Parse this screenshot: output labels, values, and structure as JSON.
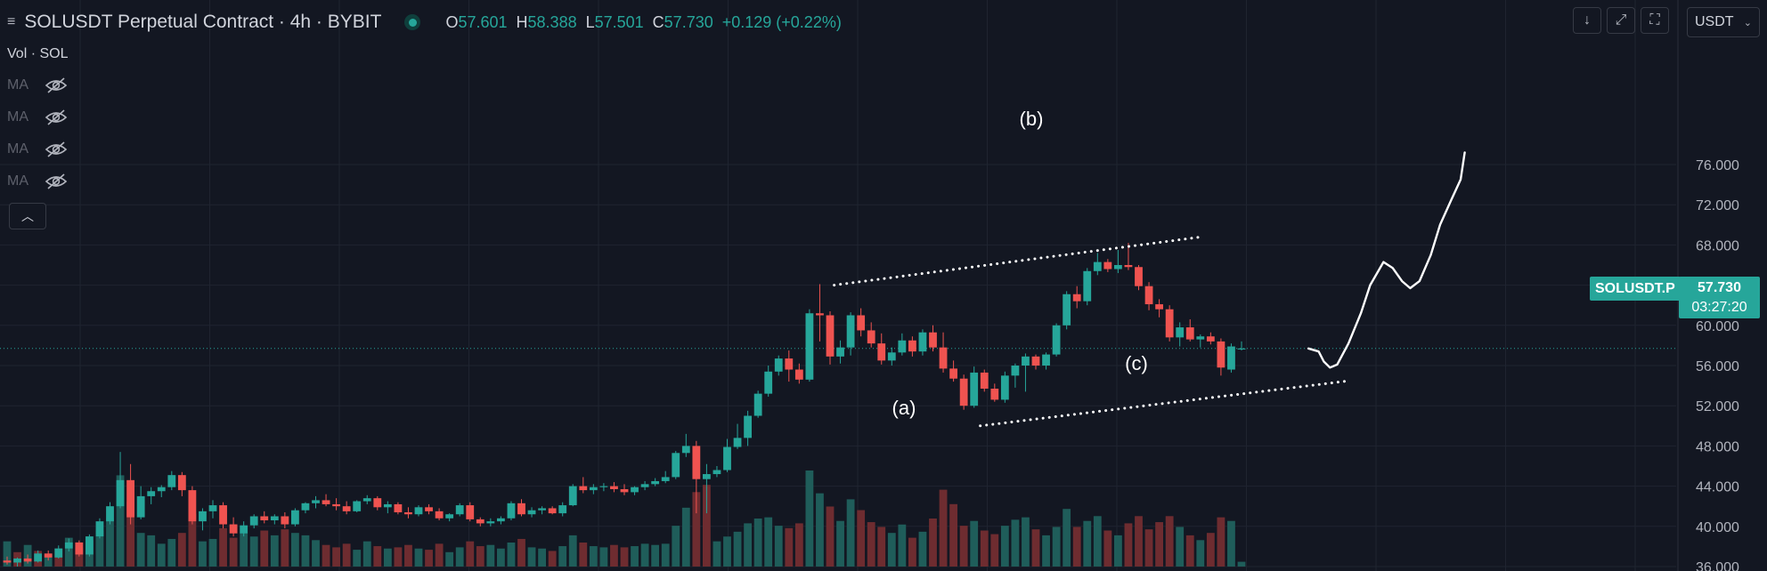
{
  "header": {
    "symbol_title": "SOLUSDT Perpetual Contract · 4h · BYBIT",
    "ohlc": {
      "o_label": "O",
      "o_value": "57.601",
      "h_label": "H",
      "h_value": "58.388",
      "l_label": "L",
      "l_value": "57.501",
      "c_label": "C",
      "c_value": "57.730",
      "change": "+0.129 (+0.22%)"
    }
  },
  "indicators": {
    "volume_label": "Vol · SOL",
    "ma_labels": [
      "MA",
      "MA",
      "MA",
      "MA"
    ]
  },
  "toolbar": {
    "currency": "USDT"
  },
  "price_axis": {
    "ticks": [
      "76.000",
      "72.000",
      "68.000",
      "64.000",
      "60.000",
      "56.000",
      "52.000",
      "48.000",
      "44.000",
      "40.000",
      "36.000"
    ]
  },
  "last_price": {
    "ticker": "SOLUSDT.P",
    "price": "57.730",
    "countdown": "03:27:20"
  },
  "annotations": {
    "a": "(a)",
    "b": "(b)",
    "c": "(c)"
  },
  "colors": {
    "background": "#131722",
    "up": "#26a69a",
    "down": "#ef5350",
    "vol_up": "#1f5d5a",
    "vol_down": "#6e2c30",
    "grid": "#1f2430"
  },
  "chart_data": {
    "type": "candlestick",
    "ylim": [
      36,
      77.5
    ],
    "candles": [
      [
        36.6,
        37.0,
        36.2,
        36.4
      ],
      [
        36.4,
        36.9,
        36.0,
        36.8
      ],
      [
        36.8,
        37.2,
        36.3,
        36.5
      ],
      [
        36.5,
        37.6,
        36.4,
        37.3
      ],
      [
        37.3,
        37.6,
        36.6,
        36.9
      ],
      [
        36.9,
        38.1,
        36.8,
        37.8
      ],
      [
        37.8,
        38.8,
        37.5,
        38.4
      ],
      [
        38.4,
        38.6,
        37.0,
        37.2
      ],
      [
        37.2,
        39.2,
        37.0,
        39.0
      ],
      [
        39.0,
        40.8,
        38.8,
        40.5
      ],
      [
        40.5,
        42.4,
        40.2,
        42.0
      ],
      [
        42.0,
        47.4,
        41.8,
        44.6
      ],
      [
        44.6,
        46.2,
        40.2,
        40.9
      ],
      [
        40.9,
        44.0,
        40.7,
        43.0
      ],
      [
        43.0,
        43.9,
        42.2,
        43.5
      ],
      [
        43.5,
        44.1,
        42.9,
        43.9
      ],
      [
        43.9,
        45.5,
        43.6,
        45.1
      ],
      [
        45.1,
        45.4,
        43.0,
        43.6
      ],
      [
        43.6,
        44.0,
        40.2,
        40.5
      ],
      [
        40.5,
        41.8,
        39.6,
        41.5
      ],
      [
        41.5,
        42.6,
        40.8,
        42.1
      ],
      [
        42.1,
        42.4,
        39.8,
        40.2
      ],
      [
        40.2,
        40.9,
        39.0,
        39.3
      ],
      [
        39.3,
        40.5,
        39.0,
        40.1
      ],
      [
        40.1,
        41.2,
        39.8,
        41.0
      ],
      [
        41.0,
        41.5,
        40.3,
        40.6
      ],
      [
        40.6,
        41.2,
        40.2,
        41.0
      ],
      [
        41.0,
        41.4,
        39.8,
        40.2
      ],
      [
        40.2,
        41.8,
        40.0,
        41.6
      ],
      [
        41.6,
        42.4,
        41.3,
        42.3
      ],
      [
        42.3,
        43.0,
        41.8,
        42.6
      ],
      [
        42.6,
        43.2,
        42.0,
        42.2
      ],
      [
        42.2,
        42.8,
        41.6,
        42.0
      ],
      [
        42.0,
        42.5,
        41.2,
        41.5
      ],
      [
        41.5,
        42.6,
        41.4,
        42.5
      ],
      [
        42.5,
        43.1,
        42.2,
        42.8
      ],
      [
        42.8,
        43.0,
        41.6,
        41.9
      ],
      [
        41.9,
        42.5,
        41.3,
        42.2
      ],
      [
        42.2,
        42.4,
        41.2,
        41.4
      ],
      [
        41.4,
        41.9,
        40.8,
        41.2
      ],
      [
        41.2,
        42.1,
        41.0,
        41.9
      ],
      [
        41.9,
        42.2,
        41.2,
        41.5
      ],
      [
        41.5,
        41.8,
        40.6,
        40.8
      ],
      [
        40.8,
        41.3,
        40.5,
        41.2
      ],
      [
        41.2,
        42.3,
        41.0,
        42.1
      ],
      [
        42.1,
        42.4,
        40.5,
        40.7
      ],
      [
        40.7,
        40.9,
        40.0,
        40.3
      ],
      [
        40.3,
        40.8,
        40.0,
        40.5
      ],
      [
        40.5,
        41.0,
        40.2,
        40.8
      ],
      [
        40.8,
        42.5,
        40.6,
        42.3
      ],
      [
        42.3,
        42.7,
        41.0,
        41.2
      ],
      [
        41.2,
        41.9,
        40.9,
        41.6
      ],
      [
        41.6,
        42.0,
        41.2,
        41.8
      ],
      [
        41.8,
        42.0,
        41.2,
        41.3
      ],
      [
        41.3,
        42.4,
        41.0,
        42.1
      ],
      [
        42.1,
        44.2,
        42.0,
        44.0
      ],
      [
        44.0,
        44.9,
        43.3,
        43.6
      ],
      [
        43.6,
        44.2,
        43.2,
        43.9
      ],
      [
        43.9,
        44.3,
        43.5,
        44.0
      ],
      [
        44.0,
        44.4,
        43.4,
        43.7
      ],
      [
        43.7,
        44.2,
        43.1,
        43.4
      ],
      [
        43.4,
        44.0,
        43.1,
        43.9
      ],
      [
        43.9,
        44.5,
        43.6,
        44.2
      ],
      [
        44.2,
        44.8,
        44.0,
        44.5
      ],
      [
        44.5,
        45.5,
        44.3,
        44.9
      ],
      [
        44.9,
        47.5,
        44.7,
        47.3
      ],
      [
        47.3,
        49.2,
        46.9,
        48.0
      ],
      [
        48.0,
        48.5,
        41.3,
        44.7
      ],
      [
        44.7,
        46.2,
        41.3,
        45.2
      ],
      [
        45.2,
        46.0,
        44.9,
        45.6
      ],
      [
        45.6,
        48.7,
        45.4,
        47.9
      ],
      [
        47.9,
        50.2,
        47.7,
        48.8
      ],
      [
        48.8,
        51.5,
        48.0,
        51.0
      ],
      [
        51.0,
        53.5,
        50.8,
        53.2
      ],
      [
        53.2,
        56.0,
        52.9,
        55.4
      ],
      [
        55.4,
        57.0,
        55.0,
        56.7
      ],
      [
        56.7,
        57.5,
        54.4,
        55.6
      ],
      [
        55.6,
        56.2,
        54.2,
        54.6
      ],
      [
        54.6,
        61.6,
        54.4,
        61.2
      ],
      [
        61.2,
        64.1,
        58.4,
        61.0
      ],
      [
        61.0,
        61.4,
        56.1,
        56.9
      ],
      [
        56.9,
        58.5,
        56.2,
        57.8
      ],
      [
        57.8,
        61.3,
        57.0,
        61.0
      ],
      [
        61.0,
        61.7,
        58.9,
        59.5
      ],
      [
        59.5,
        60.3,
        57.8,
        58.2
      ],
      [
        58.2,
        59.2,
        56.1,
        56.5
      ],
      [
        56.5,
        57.8,
        56.0,
        57.3
      ],
      [
        57.3,
        59.2,
        57.0,
        58.5
      ],
      [
        58.5,
        58.9,
        56.9,
        57.4
      ],
      [
        57.4,
        59.6,
        57.0,
        59.3
      ],
      [
        59.3,
        60.0,
        57.4,
        57.8
      ],
      [
        57.8,
        59.3,
        55.3,
        55.7
      ],
      [
        55.7,
        56.5,
        54.4,
        54.7
      ],
      [
        54.7,
        55.1,
        51.6,
        52.0
      ],
      [
        52.0,
        55.9,
        51.8,
        55.3
      ],
      [
        55.3,
        55.6,
        53.4,
        53.7
      ],
      [
        53.7,
        54.2,
        52.4,
        52.6
      ],
      [
        52.6,
        55.4,
        52.3,
        55.0
      ],
      [
        55.0,
        56.2,
        53.8,
        56.0
      ],
      [
        56.0,
        57.2,
        53.4,
        56.9
      ],
      [
        56.9,
        57.1,
        55.6,
        56.0
      ],
      [
        56.0,
        57.3,
        55.6,
        57.1
      ],
      [
        57.1,
        60.2,
        56.9,
        60.0
      ],
      [
        60.0,
        63.4,
        59.6,
        63.1
      ],
      [
        63.1,
        63.9,
        61.7,
        62.4
      ],
      [
        62.4,
        65.7,
        62.0,
        65.4
      ],
      [
        65.4,
        67.2,
        65.0,
        66.3
      ],
      [
        66.3,
        66.6,
        65.3,
        65.6
      ],
      [
        65.6,
        67.5,
        65.2,
        66.0
      ],
      [
        66.0,
        68.2,
        65.5,
        65.8
      ],
      [
        65.8,
        66.0,
        63.5,
        63.9
      ],
      [
        63.9,
        64.3,
        61.5,
        62.1
      ],
      [
        62.1,
        62.6,
        60.8,
        61.6
      ],
      [
        61.6,
        62.0,
        58.4,
        58.8
      ],
      [
        58.8,
        60.3,
        57.9,
        59.8
      ],
      [
        59.8,
        60.6,
        58.4,
        58.6
      ],
      [
        58.6,
        59.1,
        57.8,
        58.9
      ],
      [
        58.9,
        59.3,
        58.1,
        58.4
      ],
      [
        58.4,
        58.7,
        55.0,
        55.8
      ],
      [
        55.6,
        58.2,
        55.3,
        57.9
      ],
      [
        57.6,
        58.4,
        57.5,
        57.7
      ]
    ],
    "volume": [
      [
        2.1,
        1
      ],
      [
        1.2,
        0
      ],
      [
        1.8,
        1
      ],
      [
        1.3,
        0
      ],
      [
        1.0,
        1
      ],
      [
        1.5,
        0
      ],
      [
        2.4,
        1
      ],
      [
        1.6,
        0
      ],
      [
        2.2,
        1
      ],
      [
        3.0,
        1
      ],
      [
        4.0,
        1
      ],
      [
        7.6,
        1
      ],
      [
        5.4,
        0
      ],
      [
        2.8,
        1
      ],
      [
        2.6,
        1
      ],
      [
        1.9,
        1
      ],
      [
        2.3,
        1
      ],
      [
        2.8,
        0
      ],
      [
        4.4,
        0
      ],
      [
        2.1,
        1
      ],
      [
        2.3,
        1
      ],
      [
        3.2,
        0
      ],
      [
        2.4,
        0
      ],
      [
        2.8,
        1
      ],
      [
        2.5,
        1
      ],
      [
        3.0,
        0
      ],
      [
        2.6,
        1
      ],
      [
        3.1,
        0
      ],
      [
        2.8,
        1
      ],
      [
        2.6,
        1
      ],
      [
        2.2,
        1
      ],
      [
        1.8,
        0
      ],
      [
        1.6,
        0
      ],
      [
        1.9,
        0
      ],
      [
        1.4,
        1
      ],
      [
        2.1,
        1
      ],
      [
        1.7,
        0
      ],
      [
        1.5,
        1
      ],
      [
        1.6,
        0
      ],
      [
        1.8,
        0
      ],
      [
        1.5,
        1
      ],
      [
        1.4,
        0
      ],
      [
        1.9,
        0
      ],
      [
        1.2,
        1
      ],
      [
        1.6,
        1
      ],
      [
        2.1,
        0
      ],
      [
        1.7,
        0
      ],
      [
        1.8,
        1
      ],
      [
        1.5,
        1
      ],
      [
        2.0,
        1
      ],
      [
        2.3,
        0
      ],
      [
        1.6,
        1
      ],
      [
        1.5,
        1
      ],
      [
        1.3,
        0
      ],
      [
        1.7,
        1
      ],
      [
        2.6,
        1
      ],
      [
        2.0,
        0
      ],
      [
        1.7,
        1
      ],
      [
        1.6,
        1
      ],
      [
        1.8,
        0
      ],
      [
        1.6,
        0
      ],
      [
        1.7,
        1
      ],
      [
        1.9,
        1
      ],
      [
        1.8,
        1
      ],
      [
        1.9,
        1
      ],
      [
        3.4,
        1
      ],
      [
        4.9,
        1
      ],
      [
        6.2,
        0
      ],
      [
        6.8,
        0
      ],
      [
        2.1,
        1
      ],
      [
        2.5,
        1
      ],
      [
        2.9,
        1
      ],
      [
        3.6,
        1
      ],
      [
        4.0,
        1
      ],
      [
        4.1,
        1
      ],
      [
        3.4,
        1
      ],
      [
        3.2,
        0
      ],
      [
        3.6,
        0
      ],
      [
        8.0,
        1
      ],
      [
        6.1,
        1
      ],
      [
        5.0,
        0
      ],
      [
        3.8,
        1
      ],
      [
        5.6,
        1
      ],
      [
        4.7,
        0
      ],
      [
        3.7,
        0
      ],
      [
        3.3,
        0
      ],
      [
        2.8,
        1
      ],
      [
        3.5,
        1
      ],
      [
        2.4,
        0
      ],
      [
        2.9,
        1
      ],
      [
        4.0,
        0
      ],
      [
        6.4,
        0
      ],
      [
        5.2,
        0
      ],
      [
        3.4,
        0
      ],
      [
        3.8,
        1
      ],
      [
        3.0,
        0
      ],
      [
        2.7,
        0
      ],
      [
        3.4,
        1
      ],
      [
        3.9,
        1
      ],
      [
        4.1,
        1
      ],
      [
        3.1,
        0
      ],
      [
        2.6,
        1
      ],
      [
        3.3,
        1
      ],
      [
        4.8,
        1
      ],
      [
        3.3,
        0
      ],
      [
        3.8,
        1
      ],
      [
        4.2,
        1
      ],
      [
        3.0,
        0
      ],
      [
        2.6,
        1
      ],
      [
        3.6,
        0
      ],
      [
        4.2,
        0
      ],
      [
        3.1,
        0
      ],
      [
        3.7,
        0
      ],
      [
        4.2,
        0
      ],
      [
        3.3,
        1
      ],
      [
        2.6,
        0
      ],
      [
        2.2,
        1
      ],
      [
        2.8,
        0
      ],
      [
        4.1,
        0
      ],
      [
        3.8,
        1
      ],
      [
        0.4,
        1
      ]
    ],
    "trendlines": [
      {
        "style": "dotted",
        "from": {
          "bar": 80.4,
          "price": 64.0
        },
        "to": {
          "bar": 116.1,
          "price": 68.8
        }
      },
      {
        "style": "dotted",
        "from": {
          "bar": 94.6,
          "price": 50.0
        },
        "to": {
          "bar": 130.6,
          "price": 54.5
        }
      }
    ],
    "projection_path": {
      "style": "freehand",
      "points": [
        [
          126.5,
          57.7
        ],
        [
          127.5,
          57.4
        ],
        [
          128.0,
          56.4
        ],
        [
          128.6,
          55.8
        ],
        [
          129.3,
          56.1
        ],
        [
          130.4,
          58.2
        ],
        [
          131.6,
          61.2
        ],
        [
          132.5,
          64.0
        ],
        [
          133.8,
          66.3
        ],
        [
          134.7,
          65.7
        ],
        [
          135.6,
          64.4
        ],
        [
          136.4,
          63.7
        ],
        [
          137.3,
          64.4
        ],
        [
          138.4,
          67.0
        ],
        [
          139.3,
          70.0
        ],
        [
          140.4,
          72.5
        ],
        [
          141.3,
          74.5
        ],
        [
          141.7,
          77.2
        ]
      ]
    }
  }
}
